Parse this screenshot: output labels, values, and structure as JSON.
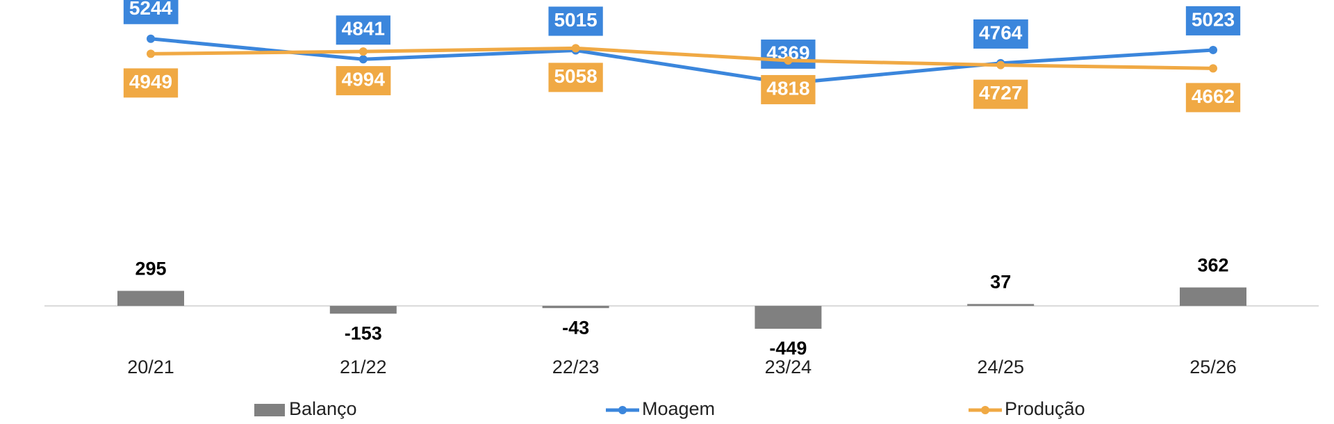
{
  "chart_data": {
    "type": "combo",
    "categories": [
      "20/21",
      "21/22",
      "22/23",
      "23/24",
      "24/25",
      "25/26"
    ],
    "series": [
      {
        "name": "Balanço",
        "type": "bar",
        "color": "#808080",
        "values": [
          295,
          -153,
          -43,
          -449,
          37,
          362
        ]
      },
      {
        "name": "Moagem",
        "type": "line",
        "color": "#3b86dc",
        "values": [
          5244,
          4841,
          5015,
          4369,
          4764,
          5023
        ]
      },
      {
        "name": "Produção",
        "type": "line",
        "color": "#f0a944",
        "values": [
          4949,
          4994,
          5058,
          4818,
          4727,
          4662
        ]
      }
    ],
    "ylim": [
      -1500,
      5800
    ]
  }
}
